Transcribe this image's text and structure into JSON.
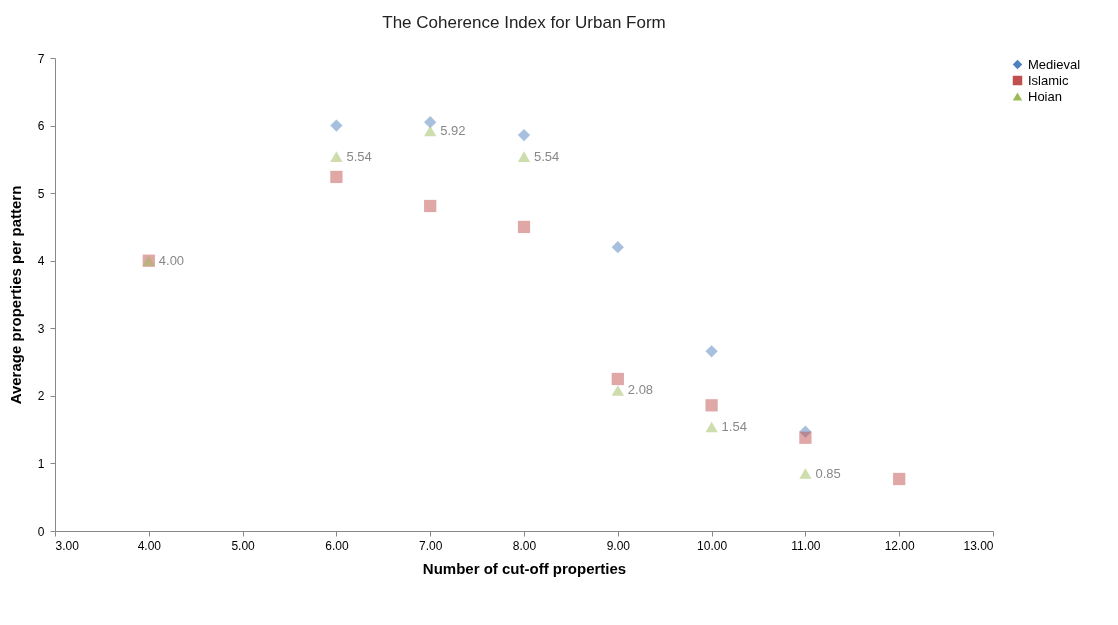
{
  "chart_data": {
    "type": "scatter",
    "title": "The Coherence Index for Urban Form",
    "xlabel": "Number of cut-off properties",
    "ylabel": "Average properties per pattern",
    "x": [
      4,
      6,
      7,
      8,
      9,
      10,
      11,
      12
    ],
    "series": [
      {
        "name": "Medieval",
        "color": "#4f81bd",
        "marker": "diamond",
        "values": [
          null,
          6.0,
          6.05,
          5.86,
          4.2,
          2.66,
          1.47,
          null
        ]
      },
      {
        "name": "Islamic",
        "color": "#c0504d",
        "marker": "square",
        "values": [
          4.0,
          5.24,
          4.81,
          4.5,
          2.25,
          1.86,
          1.38,
          0.77
        ]
      },
      {
        "name": "Hoian",
        "color": "#9bbb59",
        "marker": "triangle",
        "values": [
          4.0,
          5.54,
          5.92,
          5.54,
          2.08,
          1.54,
          0.85,
          null
        ],
        "value_labels": [
          "4.00",
          "5.54",
          "5.92",
          "5.54",
          "2.08",
          "1.54",
          "0.85",
          null
        ]
      }
    ],
    "xlim": [
      3,
      13
    ],
    "xticks": [
      {
        "value": 3,
        "label": "3.00"
      },
      {
        "value": 4,
        "label": "4.00"
      },
      {
        "value": 5,
        "label": "5.00"
      },
      {
        "value": 6,
        "label": "6.00"
      },
      {
        "value": 7,
        "label": "7.00"
      },
      {
        "value": 8,
        "label": "8.00"
      },
      {
        "value": 9,
        "label": "9.00"
      },
      {
        "value": 10,
        "label": "10.00"
      },
      {
        "value": 11,
        "label": "11.00"
      },
      {
        "value": 12,
        "label": "12.00"
      },
      {
        "value": 13,
        "label": "13.00"
      }
    ],
    "ylim": [
      0,
      7
    ],
    "yticks": [
      0,
      1,
      2,
      3,
      4,
      5,
      6,
      7
    ],
    "grid": false,
    "legend": "right"
  }
}
